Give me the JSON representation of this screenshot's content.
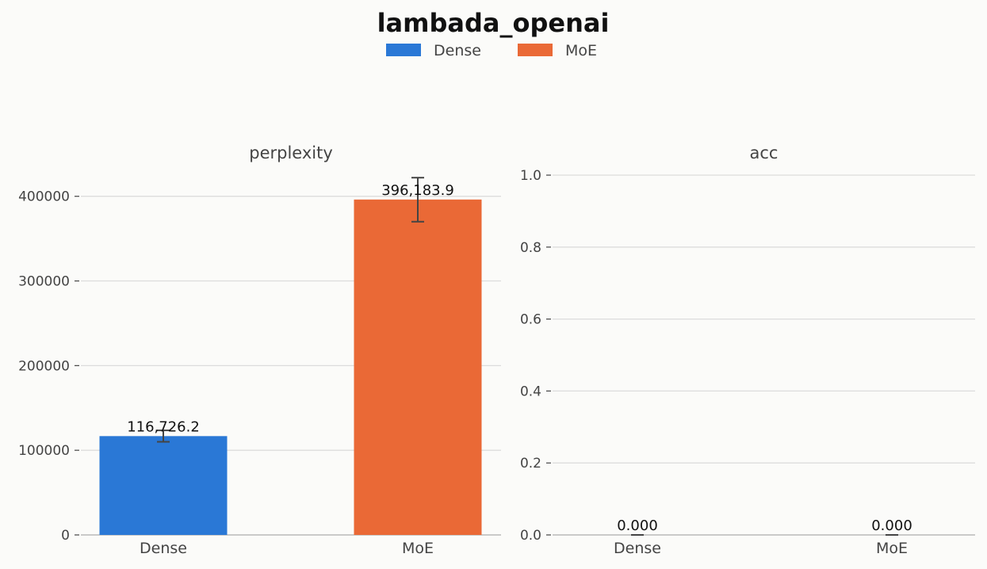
{
  "figure": {
    "title": "lambada_openai"
  },
  "legend": {
    "items": [
      {
        "label": "Dense",
        "color": "#2a78d6"
      },
      {
        "label": "MoE",
        "color": "#ea6936"
      }
    ],
    "placement": "top-center"
  },
  "chart_data": [
    {
      "type": "bar",
      "title": "perplexity",
      "categories": [
        "Dense",
        "MoE"
      ],
      "values": [
        116726.2,
        396183.9
      ],
      "value_labels": [
        "116,726.2",
        "396,183.9"
      ],
      "error": [
        [
          110000,
          123500
        ],
        [
          370000,
          422000
        ]
      ],
      "colors": [
        "#2a78d6",
        "#ea6936"
      ],
      "ylim": [
        0,
        425000
      ],
      "yticks": [
        0,
        100000,
        200000,
        300000,
        400000
      ],
      "ytick_labels": [
        "0",
        "100000",
        "200000",
        "300000",
        "400000"
      ],
      "grid": true
    },
    {
      "type": "bar",
      "title": "acc",
      "categories": [
        "Dense",
        "MoE"
      ],
      "values": [
        0.0,
        0.0
      ],
      "value_labels": [
        "0.000",
        "0.000"
      ],
      "error": [
        [
          0.0,
          0.0
        ],
        [
          0.0,
          0.0
        ]
      ],
      "colors": [
        "#2a78d6",
        "#ea6936"
      ],
      "ylim": [
        0,
        1.0
      ],
      "yticks": [
        0.0,
        0.2,
        0.4,
        0.6,
        0.8,
        1.0
      ],
      "ytick_labels": [
        "0.0",
        "0.2",
        "0.4",
        "0.6",
        "0.8",
        "1.0"
      ],
      "grid": true
    }
  ]
}
